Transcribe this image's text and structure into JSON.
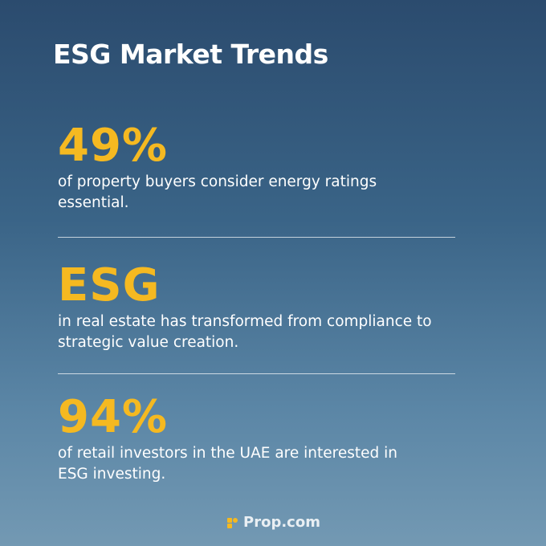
{
  "title": "ESG Market Trends",
  "stats": [
    {
      "value": "49%",
      "text": "of property buyers consider energy ratings essential."
    },
    {
      "value": "ESG",
      "text": "in real estate has transformed from compliance to strategic value creation."
    },
    {
      "value": "94%",
      "text": "of retail investors in the UAE are interested in ESG investing."
    }
  ],
  "footer": {
    "brand": "Prop.com",
    "icon": "prop-logo-icon"
  },
  "colors": {
    "accent": "#f5b921",
    "text": "#ffffff",
    "background_top": "#2b4b6e",
    "background_bottom": "#7399b3"
  }
}
